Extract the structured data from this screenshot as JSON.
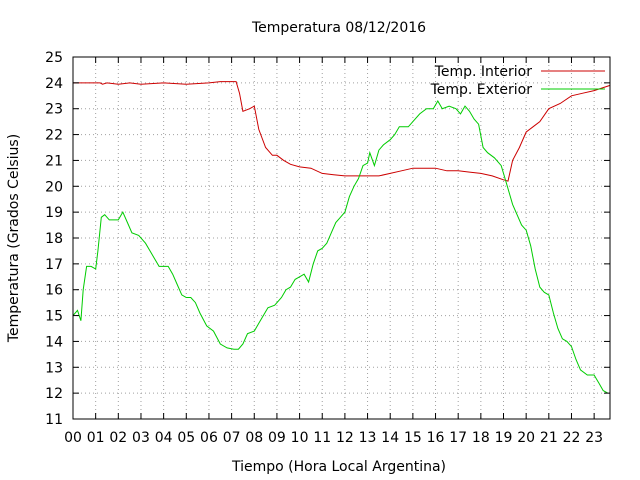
{
  "chart_data": {
    "type": "line",
    "title": "Temperatura 08/12/2016",
    "xlabel": "Tiempo (Hora Local Argentina)",
    "ylabel": "Temperatura (Grados Celsius)",
    "xlim": [
      0,
      23.7
    ],
    "ylim": [
      11,
      25
    ],
    "grid": true,
    "legend_position": "top-right",
    "x_tick_labels": [
      "00",
      "01",
      "02",
      "03",
      "04",
      "05",
      "06",
      "07",
      "08",
      "09",
      "10",
      "11",
      "12",
      "13",
      "14",
      "15",
      "16",
      "17",
      "18",
      "19",
      "20",
      "21",
      "22",
      "23"
    ],
    "y_tick_labels": [
      "11",
      "12",
      "13",
      "14",
      "15",
      "16",
      "17",
      "18",
      "19",
      "20",
      "21",
      "22",
      "23",
      "24",
      "25"
    ],
    "series": [
      {
        "name": "Temp. Interior",
        "color": "#cc0000",
        "x": [
          0,
          1.2,
          1.3,
          1.5,
          2,
          2.5,
          3,
          4,
          5,
          6,
          6.5,
          7,
          7.2,
          7.35,
          7.5,
          7.8,
          8,
          8.2,
          8.5,
          8.8,
          9,
          9.3,
          9.6,
          10,
          10.5,
          11,
          11.5,
          12,
          13,
          13.5,
          14,
          14.5,
          15,
          16,
          16.5,
          17,
          17.5,
          18,
          18.5,
          19,
          19.2,
          19.4,
          19.7,
          20,
          20.3,
          20.6,
          21,
          21.5,
          22,
          22.5,
          23,
          23.7
        ],
        "values": [
          24.0,
          24.0,
          23.95,
          24.0,
          23.95,
          24.0,
          23.95,
          24.0,
          23.95,
          24.0,
          24.05,
          24.05,
          24.05,
          23.6,
          22.9,
          23.0,
          23.1,
          22.2,
          21.5,
          21.2,
          21.2,
          21.0,
          20.85,
          20.75,
          20.7,
          20.5,
          20.45,
          20.4,
          20.4,
          20.4,
          20.5,
          20.6,
          20.7,
          20.7,
          20.6,
          20.6,
          20.55,
          20.5,
          20.4,
          20.25,
          20.2,
          21.0,
          21.5,
          22.1,
          22.3,
          22.5,
          23.0,
          23.2,
          23.5,
          23.6,
          23.7,
          23.9
        ]
      },
      {
        "name": "Temp. Exterior",
        "color": "#00cc00",
        "x": [
          0,
          0.2,
          0.35,
          0.45,
          0.6,
          0.8,
          1.0,
          1.1,
          1.25,
          1.4,
          1.6,
          2.0,
          2.2,
          2.4,
          2.6,
          2.9,
          3.2,
          3.4,
          3.6,
          3.8,
          4.0,
          4.2,
          4.4,
          4.6,
          4.8,
          5.0,
          5.2,
          5.4,
          5.6,
          5.9,
          6.2,
          6.5,
          6.8,
          7.1,
          7.3,
          7.5,
          7.7,
          8.0,
          8.2,
          8.4,
          8.6,
          8.9,
          9.2,
          9.4,
          9.6,
          9.8,
          10.0,
          10.2,
          10.4,
          10.6,
          10.8,
          11.0,
          11.2,
          11.4,
          11.6,
          11.8,
          12.0,
          12.2,
          12.4,
          12.6,
          12.8,
          13.0,
          13.1,
          13.3,
          13.5,
          13.7,
          14.0,
          14.2,
          14.4,
          14.6,
          14.8,
          15.0,
          15.3,
          15.6,
          15.9,
          16.1,
          16.3,
          16.6,
          16.9,
          17.1,
          17.3,
          17.5,
          17.7,
          17.9,
          18.1,
          18.3,
          18.6,
          18.9,
          19.1,
          19.4,
          19.8,
          20.0,
          20.2,
          20.4,
          20.6,
          20.8,
          21.0,
          21.2,
          21.4,
          21.6,
          21.8,
          22.0,
          22.2,
          22.4,
          22.7,
          23.0,
          23.2,
          23.4,
          23.6
        ],
        "values": [
          15.0,
          15.2,
          14.8,
          16.0,
          16.9,
          16.9,
          16.8,
          17.5,
          18.8,
          18.9,
          18.7,
          18.7,
          19.0,
          18.6,
          18.2,
          18.1,
          17.8,
          17.5,
          17.2,
          16.9,
          16.9,
          16.9,
          16.6,
          16.2,
          15.8,
          15.7,
          15.7,
          15.5,
          15.1,
          14.6,
          14.4,
          13.9,
          13.75,
          13.7,
          13.7,
          13.9,
          14.3,
          14.4,
          14.7,
          15.0,
          15.3,
          15.4,
          15.7,
          16.0,
          16.1,
          16.4,
          16.5,
          16.6,
          16.3,
          17.0,
          17.5,
          17.6,
          17.8,
          18.2,
          18.6,
          18.8,
          19.0,
          19.6,
          20.0,
          20.3,
          20.8,
          20.9,
          21.3,
          20.8,
          21.4,
          21.6,
          21.8,
          22.0,
          22.3,
          22.3,
          22.3,
          22.5,
          22.8,
          23.0,
          23.0,
          23.3,
          23.0,
          23.1,
          23.0,
          22.8,
          23.1,
          22.9,
          22.6,
          22.4,
          21.5,
          21.3,
          21.1,
          20.8,
          20.2,
          19.3,
          18.5,
          18.3,
          17.7,
          16.8,
          16.1,
          15.9,
          15.8,
          15.1,
          14.5,
          14.1,
          14.0,
          13.8,
          13.3,
          12.9,
          12.7,
          12.7,
          12.4,
          12.1,
          12.0
        ]
      }
    ]
  }
}
